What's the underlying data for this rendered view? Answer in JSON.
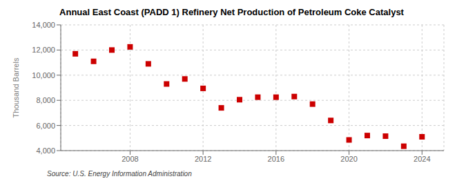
{
  "chart_data": {
    "type": "scatter",
    "title": "Annual East Coast (PADD 1) Refinery Net Production of Petroleum Coke Catalyst",
    "ylabel": "Thousand Barrels",
    "source": "Source: U.S. Energy Information Administration",
    "x": [
      2005,
      2006,
      2007,
      2008,
      2009,
      2010,
      2011,
      2012,
      2013,
      2014,
      2015,
      2016,
      2017,
      2018,
      2019,
      2020,
      2021,
      2022,
      2023,
      2024
    ],
    "values": [
      11700,
      11100,
      12000,
      12250,
      10900,
      9300,
      9700,
      8950,
      7400,
      8050,
      8250,
      8250,
      8300,
      7700,
      6400,
      4850,
      5200,
      5150,
      4350,
      5100
    ],
    "color": "#cc0000",
    "marker": "square",
    "xlim": [
      2004.2,
      2025.2
    ],
    "ylim": [
      4000,
      14000
    ],
    "xticks": [
      2008,
      2012,
      2016,
      2020,
      2024
    ],
    "yticks": [
      {
        "value": 4000,
        "label": "4,000"
      },
      {
        "value": 6000,
        "label": "6,000"
      },
      {
        "value": 8000,
        "label": "8,000"
      },
      {
        "value": 10000,
        "label": "10,000"
      },
      {
        "value": 12000,
        "label": "12,000"
      },
      {
        "value": 14000,
        "label": "14,000"
      }
    ],
    "grid": true
  }
}
